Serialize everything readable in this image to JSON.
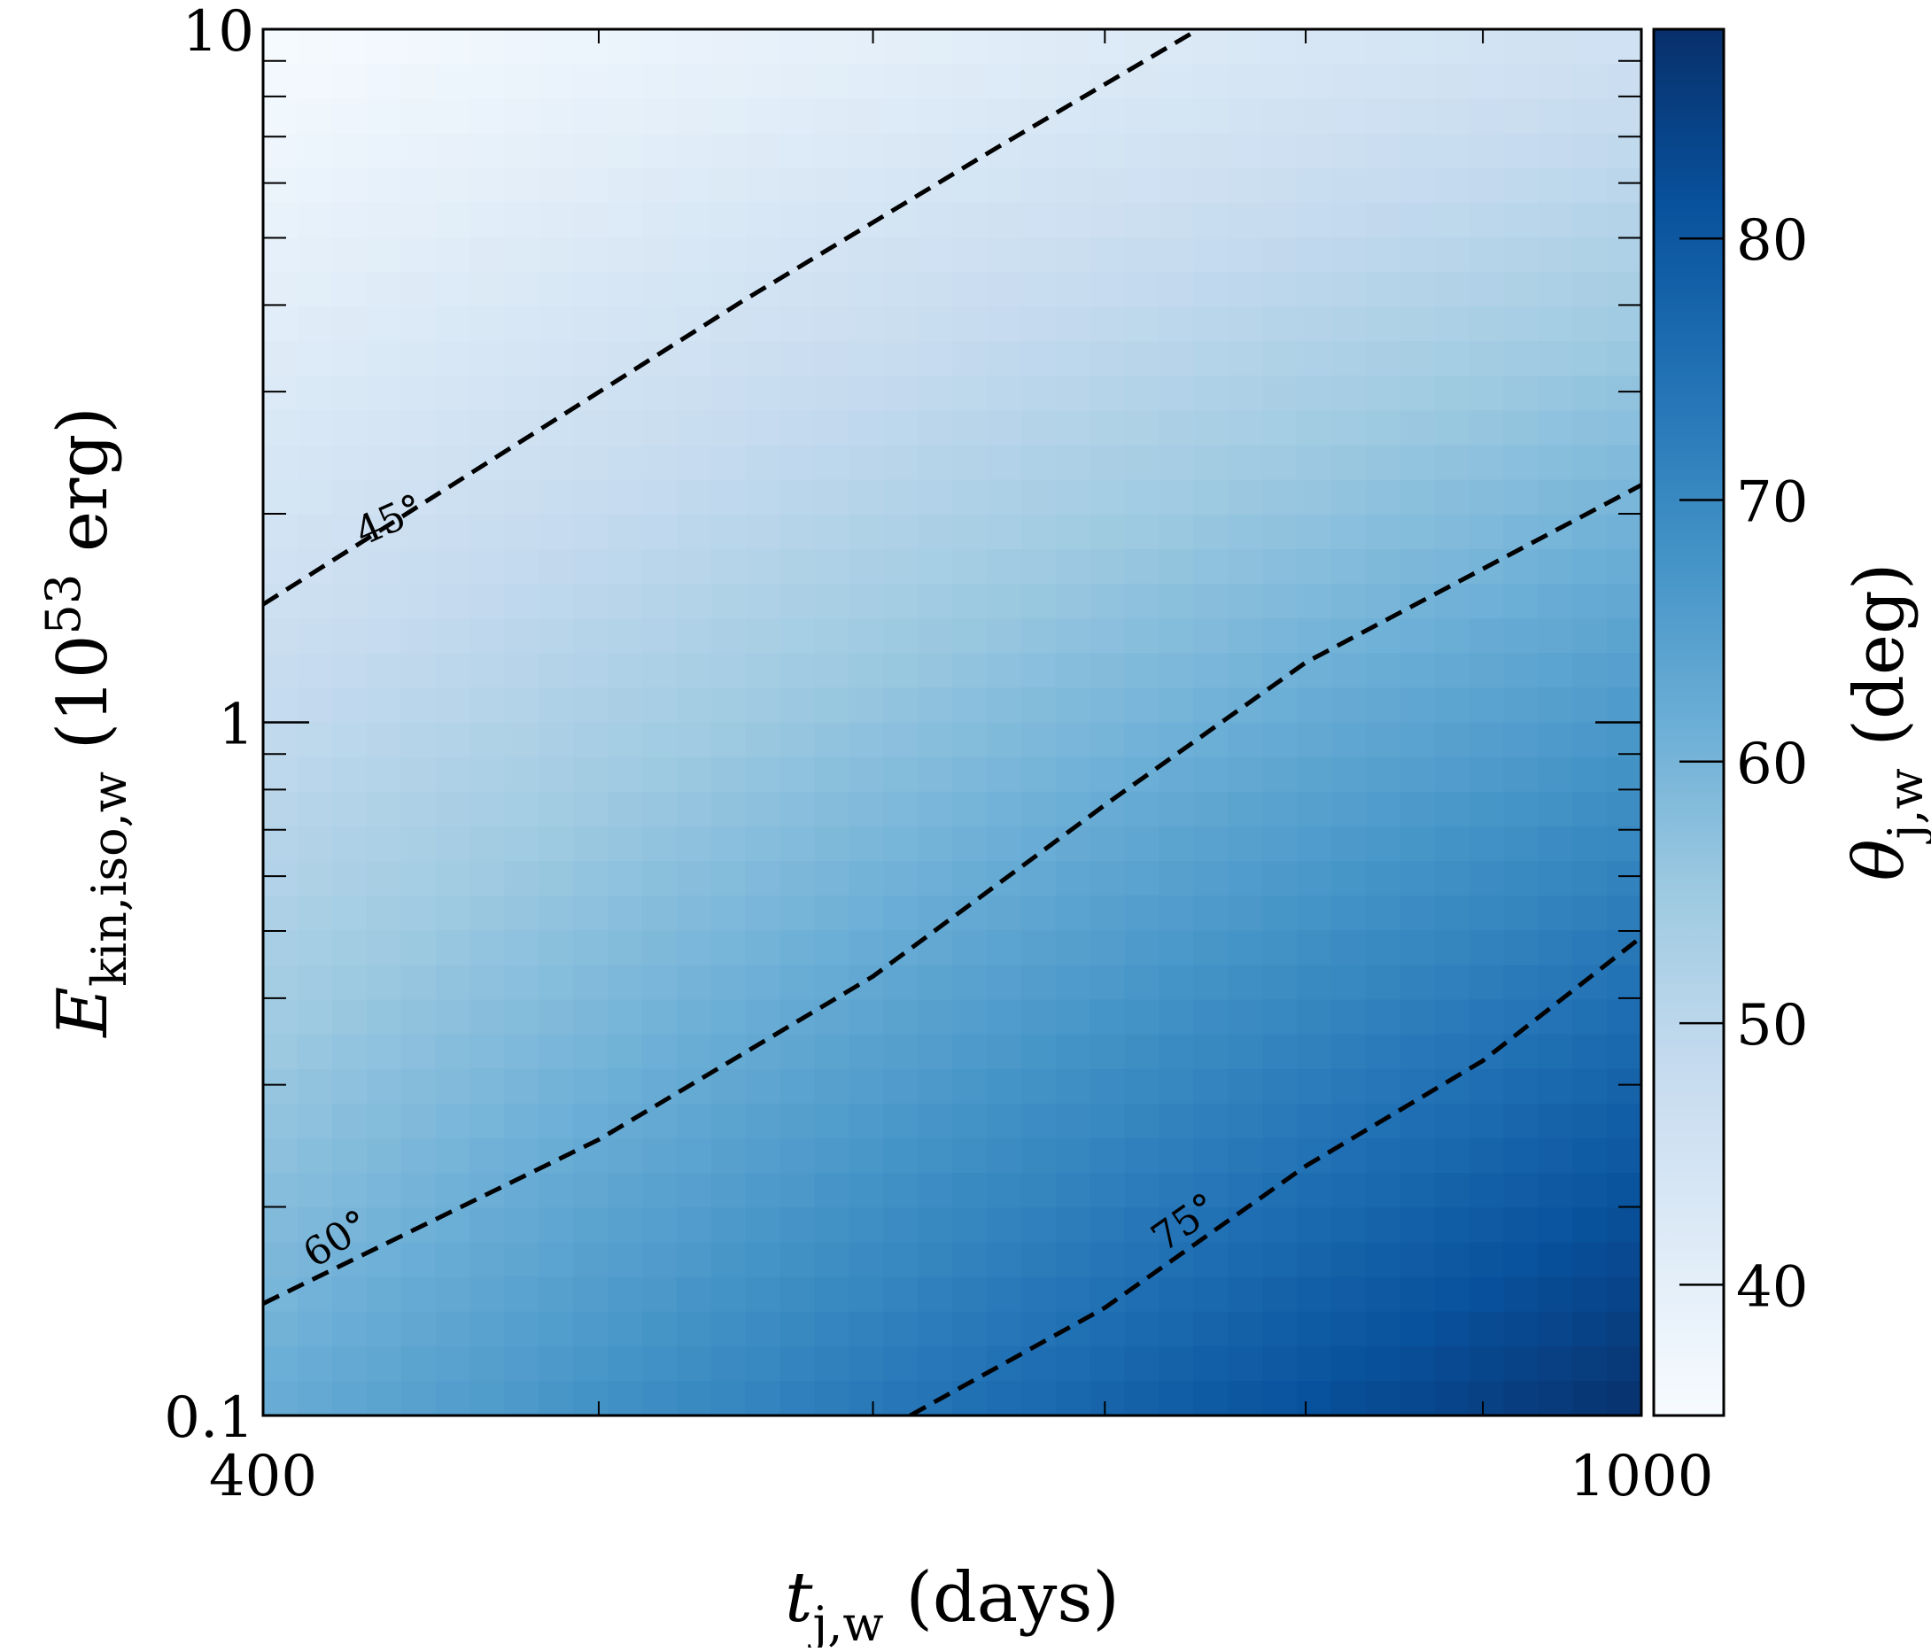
{
  "chart_data": {
    "type": "heatmap",
    "title": "",
    "x": {
      "label_main": "t",
      "label_sub": "j,w",
      "label_suffix": " (days)",
      "range": [
        400,
        1000
      ],
      "scale": "log",
      "tick_labels": [
        "400",
        "1000"
      ],
      "tick_values": [
        400,
        1000
      ],
      "minor_ticks": [
        500,
        600,
        700,
        800,
        900
      ]
    },
    "y": {
      "label_main": "E",
      "label_sub": "kin,iso,w",
      "label_suffix": " (10",
      "label_sup": "53",
      "label_suffix2": " erg)",
      "range": [
        0.1,
        10
      ],
      "scale": "log",
      "tick_labels": [
        "0.1",
        "1",
        "10"
      ],
      "tick_values": [
        0.1,
        1,
        10
      ],
      "minor_ticks": [
        0.2,
        0.3,
        0.4,
        0.5,
        0.6,
        0.7,
        0.8,
        0.9,
        2,
        3,
        4,
        5,
        6,
        7,
        8,
        9
      ]
    },
    "colorbar": {
      "label_main": "θ",
      "label_sub": "j,w",
      "label_suffix": " (deg)",
      "range": [
        35,
        88
      ],
      "tick_labels": [
        "40",
        "50",
        "60",
        "70",
        "80"
      ],
      "tick_values": [
        40,
        50,
        60,
        70,
        80
      ],
      "colormap": "Blues",
      "colors": [
        "#f7fbff",
        "#deebf7",
        "#c6dbef",
        "#9ecae1",
        "#6baed6",
        "#4292c6",
        "#2171b5",
        "#08519c",
        "#08306b"
      ]
    },
    "field": {
      "description_values": "theta at corners",
      "corners": {
        "x400_y10": 35,
        "x1000_y10": 45.5,
        "x400_y0.1": 62,
        "x1000_y0.1": 88
      }
    },
    "contours": [
      {
        "level": 45,
        "label": "45°",
        "points": [
          [
            400,
            1.48
          ],
          [
            465,
            2.38
          ],
          [
            550,
            4.05
          ],
          [
            650,
            6.7
          ],
          [
            745,
            10
          ]
        ],
        "label_at": [
          [
            [
              435,
              1.96
            ],
            [
              -24
            ]
          ]
        ]
      },
      {
        "level": 60,
        "label": "60°",
        "points": [
          [
            400,
            0.145
          ],
          [
            500,
            0.25
          ],
          [
            600,
            0.43
          ],
          [
            700,
            0.76
          ],
          [
            800,
            1.22
          ],
          [
            1000,
            2.2
          ]
        ],
        "label_at": [
          [
            [
              420,
              0.18
            ],
            [
              -33
            ]
          ]
        ]
      },
      {
        "level": 75,
        "label": "75°",
        "points": [
          [
            615,
            0.1
          ],
          [
            700,
            0.143
          ],
          [
            800,
            0.229
          ],
          [
            900,
            0.325
          ],
          [
            1000,
            0.49
          ]
        ],
        "label_at": [
          [
            [
              738,
              0.19
            ],
            [
              -35
            ]
          ]
        ]
      }
    ]
  }
}
